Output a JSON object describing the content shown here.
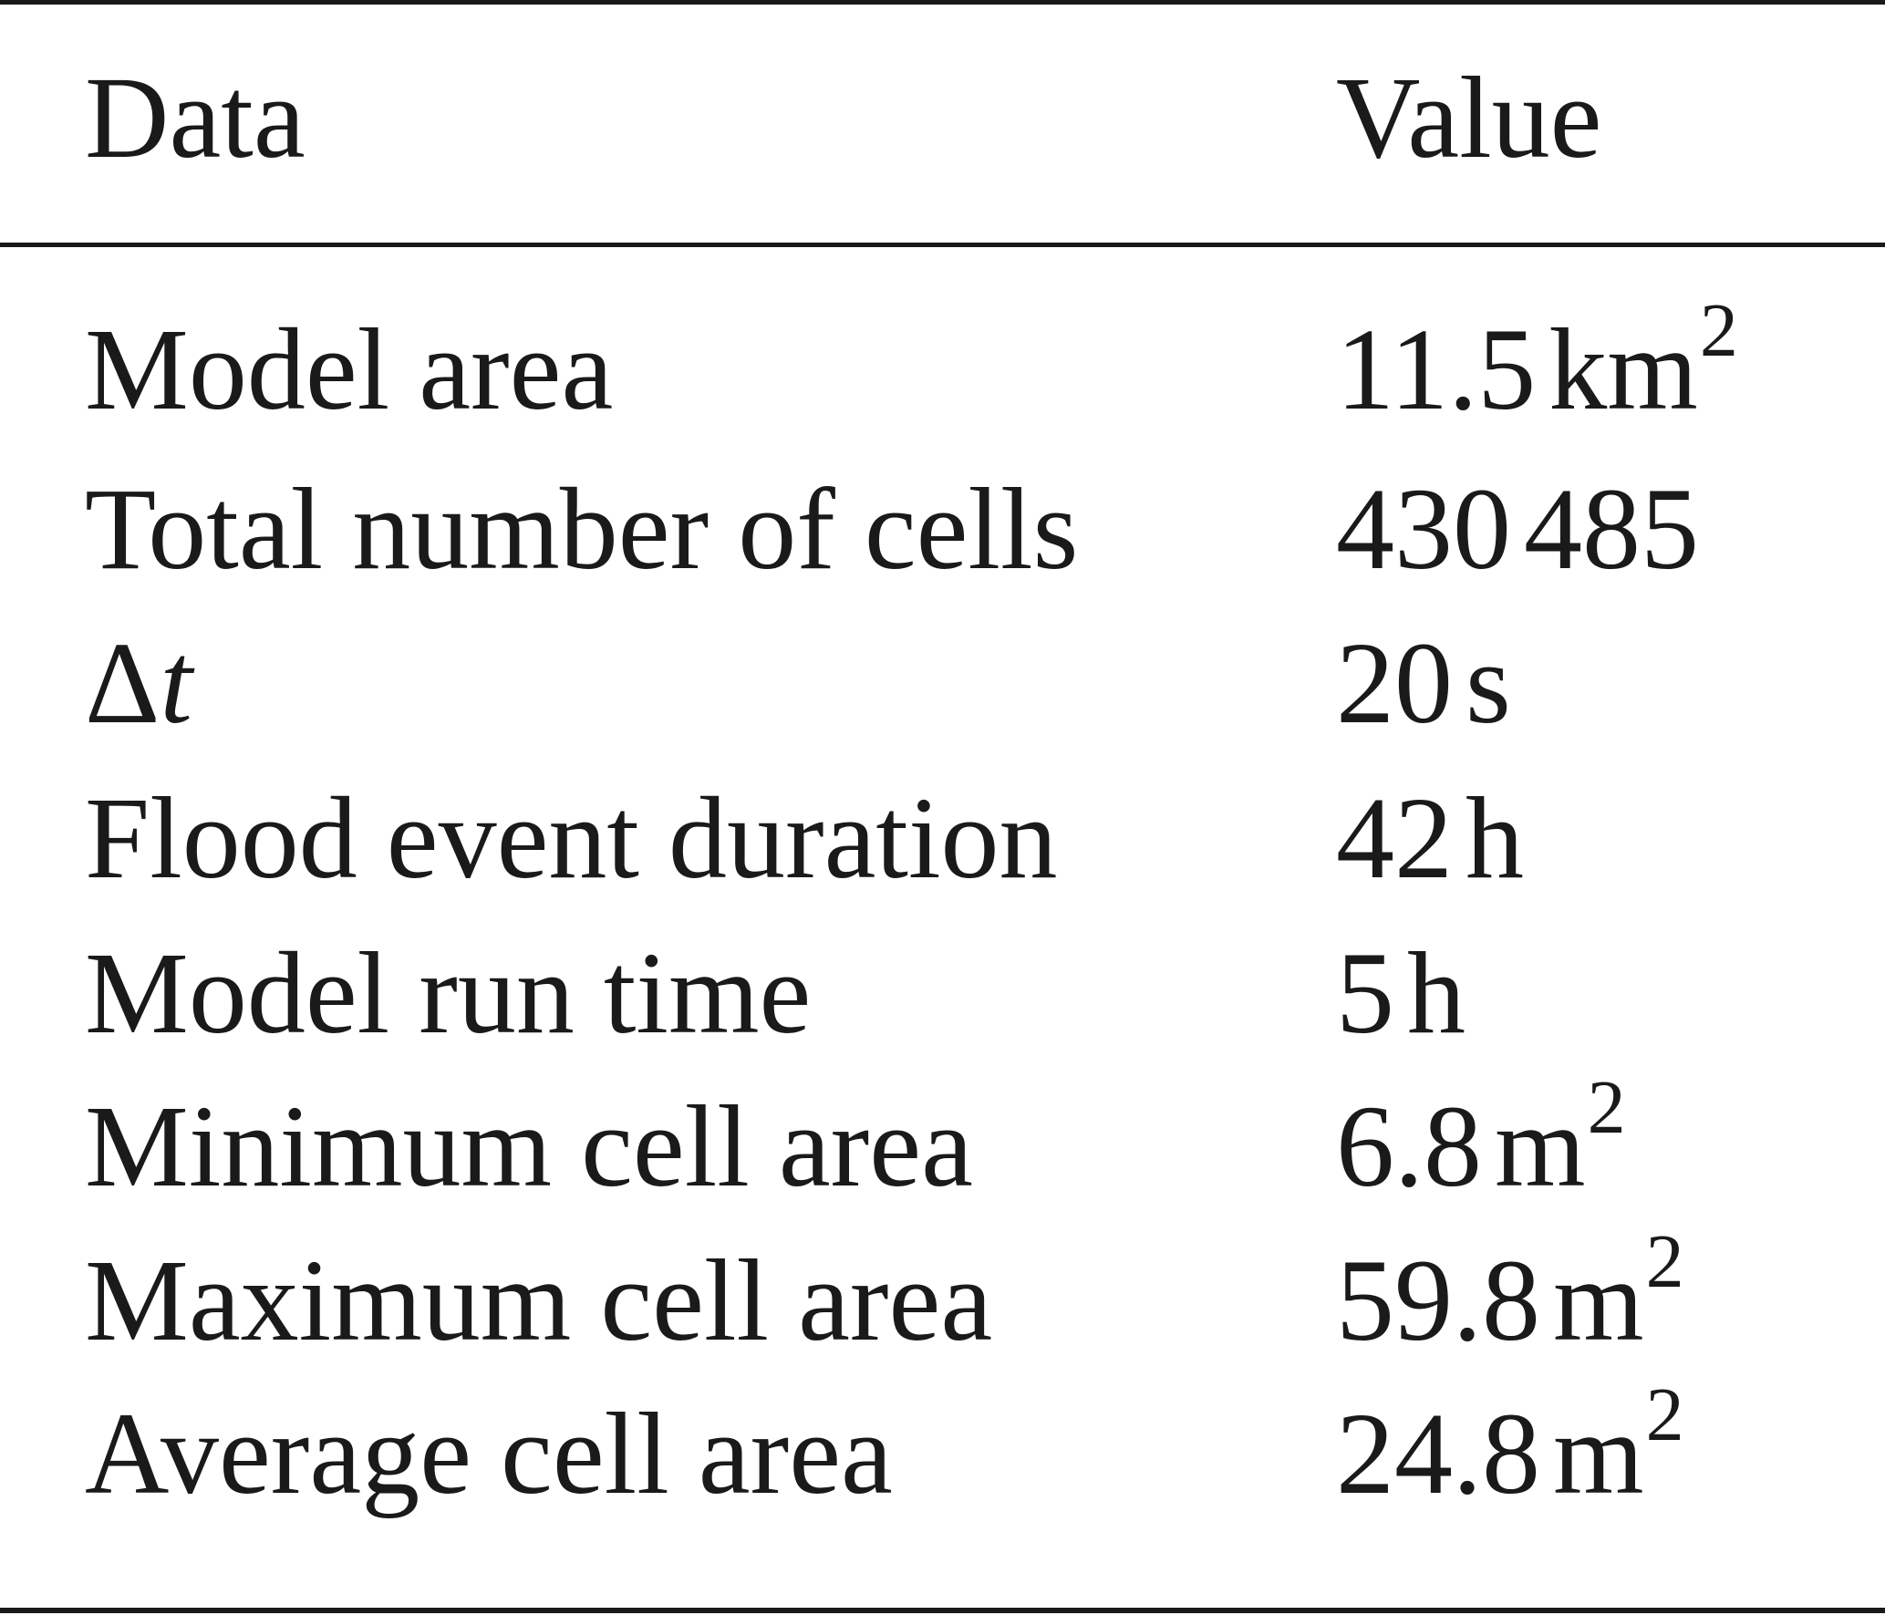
{
  "table": {
    "headers": {
      "data": "Data",
      "value": "Value"
    },
    "rows": [
      {
        "label": "Model area",
        "number": "11.5",
        "unit": "km",
        "exponent": "2"
      },
      {
        "label": "Total number of cells",
        "number": "430",
        "number2": "485"
      },
      {
        "label_delta": "Δ",
        "label_var": "t",
        "number": "20",
        "unit": "s"
      },
      {
        "label": "Flood event duration",
        "number": "42",
        "unit": "h"
      },
      {
        "label": "Model run time",
        "number": "5",
        "unit": "h"
      },
      {
        "label": "Minimum cell area",
        "number": "6.8",
        "unit": "m",
        "exponent": "2"
      },
      {
        "label": "Maximum cell area",
        "number": "59.8",
        "unit": "m",
        "exponent": "2"
      },
      {
        "label": "Average cell area",
        "number": "24.8",
        "unit": "m",
        "exponent": "2"
      }
    ]
  }
}
